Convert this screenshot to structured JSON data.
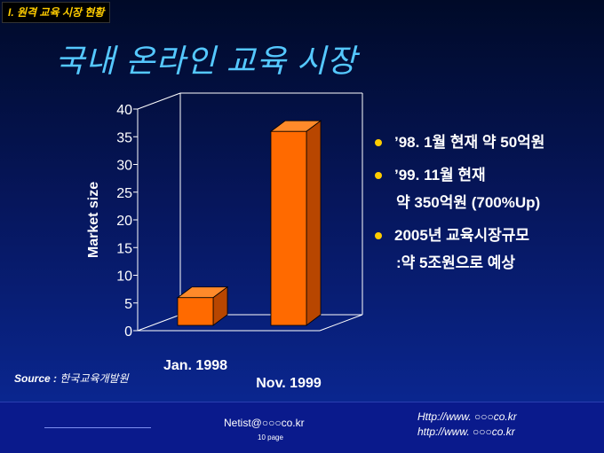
{
  "section_tag": "I. 원격 교육 시장 현황",
  "slide_title": "국내 온라인 교육 시장",
  "bullets": [
    {
      "line1": "’98. 1월 현재  약 50억원"
    },
    {
      "line1": "’99. 11월 현재",
      "line2": "약 350억원 (700%Up)"
    },
    {
      "line1": "2005년 교육시장규모",
      "line2": ":약 5조원으로 예상"
    }
  ],
  "source": {
    "label": "Source :",
    "value": "한국교육개발원"
  },
  "footer": {
    "email": "Netist@○○○co.kr",
    "page": "10 page",
    "url1": "Http://www. ○○○co.kr",
    "url2": "http://www. ○○○co.kr"
  },
  "colors": {
    "bar": "#ff6a00",
    "bullet": "#ffcc00",
    "title": "#55c8ff"
  },
  "chart_data": {
    "type": "bar",
    "categories": [
      "Jan. 1998",
      "Nov. 1999"
    ],
    "values": [
      5,
      35
    ],
    "ylabel": "Market size",
    "xlabel": "",
    "ylim": [
      0,
      40
    ],
    "yticks": [
      0,
      5,
      10,
      15,
      20,
      25,
      30,
      35,
      40
    ],
    "grid": false,
    "style": "3d"
  }
}
